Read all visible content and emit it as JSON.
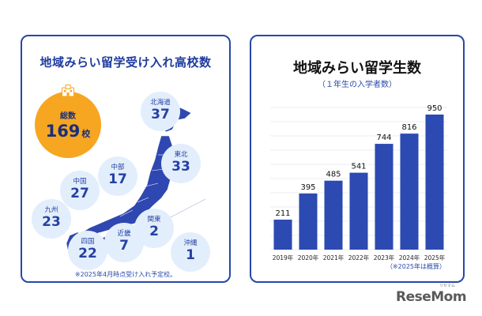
{
  "left": {
    "title": "地域みらい留学受け入れ高校数",
    "total": {
      "label": "総数",
      "value": "169",
      "unit": "校"
    },
    "regions": [
      {
        "id": "hokkaido",
        "name": "北海道",
        "value": "37"
      },
      {
        "id": "tohoku",
        "name": "東北",
        "value": "33"
      },
      {
        "id": "chubu",
        "name": "中部",
        "value": "17"
      },
      {
        "id": "chugoku",
        "name": "中国",
        "value": "27"
      },
      {
        "id": "kyushu",
        "name": "九州",
        "value": "23"
      },
      {
        "id": "kanto",
        "name": "関東",
        "value": "2"
      },
      {
        "id": "kinki",
        "name": "近畿",
        "value": "7"
      },
      {
        "id": "shikoku",
        "name": "四国",
        "value": "22"
      },
      {
        "id": "okinawa",
        "name": "沖縄",
        "value": "1"
      }
    ],
    "note": "※2025年4月時点受け入れ予定校。"
  },
  "right": {
    "note": "（※2025年は概算）"
  },
  "chart_data": {
    "type": "bar",
    "title": "地域みらい留学生数",
    "subtitle": "（１年生の入学者数）",
    "categories": [
      "2019年",
      "2020年",
      "2021年",
      "2022年",
      "2023年",
      "2024年",
      "2025年"
    ],
    "values": [
      211,
      395,
      485,
      541,
      744,
      816,
      950
    ],
    "ylim": [
      0,
      1000
    ],
    "grid": true,
    "bar_color": "#2c4ab2"
  },
  "colors": {
    "brand_blue": "#2847a8",
    "map_blue": "#2f47b0",
    "total_orange": "#f6a621",
    "region_bg": "#e3eefc"
  },
  "logo": {
    "text": "ReseMom",
    "ruby": "リセマム"
  }
}
